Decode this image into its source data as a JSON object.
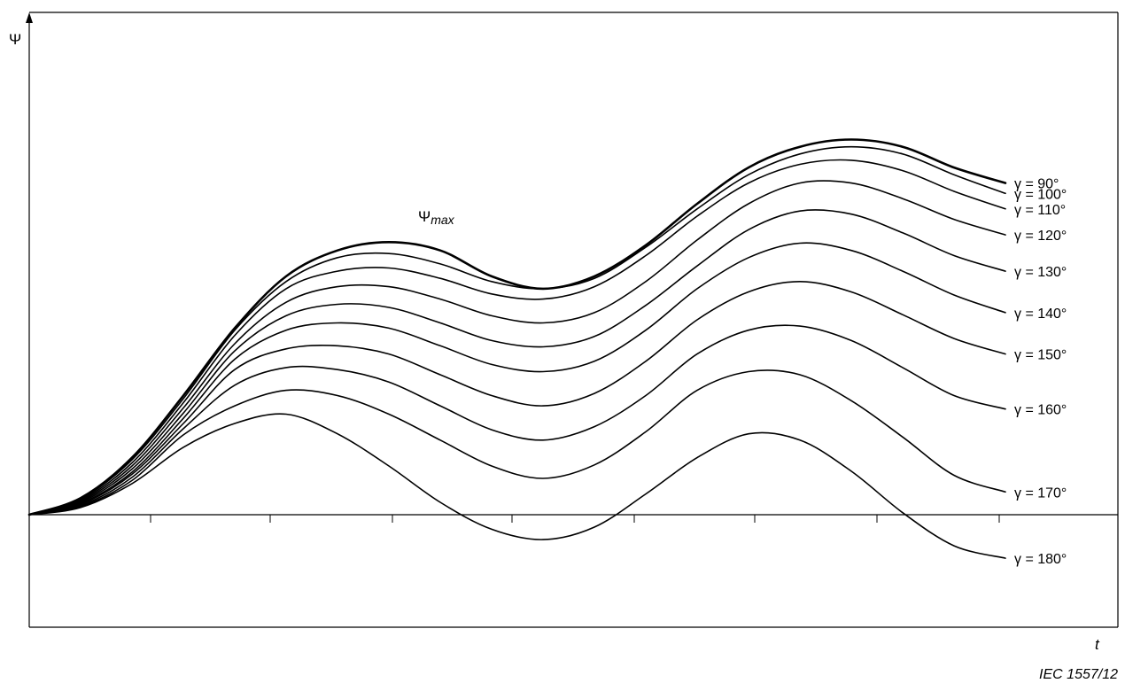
{
  "chart_data": {
    "type": "line",
    "title": "",
    "xlabel": "t",
    "ylabel": "Ψ",
    "xlim": [
      0,
      1
    ],
    "ylim": [
      -1,
      4.4
    ],
    "grid": false,
    "annotation": {
      "base": "Ψ",
      "subscript": "max"
    },
    "source": "IEC 1557/12",
    "series": [
      {
        "name": "γ = 90°",
        "values": [
          [
            0,
            0
          ],
          [
            0.05,
            0.16
          ],
          [
            0.1,
            0.55
          ],
          [
            0.15,
            1.15
          ],
          [
            0.2,
            1.8
          ],
          [
            0.25,
            2.3
          ],
          [
            0.3,
            2.55
          ],
          [
            0.35,
            2.63
          ],
          [
            0.4,
            2.55
          ],
          [
            0.45,
            2.3
          ],
          [
            0.5,
            2.18
          ],
          [
            0.55,
            2.3
          ],
          [
            0.6,
            2.6
          ],
          [
            0.65,
            3.0
          ],
          [
            0.7,
            3.35
          ],
          [
            0.75,
            3.55
          ],
          [
            0.8,
            3.62
          ],
          [
            0.85,
            3.55
          ],
          [
            0.9,
            3.35
          ],
          [
            0.95,
            3.2
          ]
        ]
      },
      {
        "name": "γ = 100°",
        "values": [
          [
            0,
            0
          ],
          [
            0.05,
            0.15
          ],
          [
            0.1,
            0.53
          ],
          [
            0.15,
            1.12
          ],
          [
            0.2,
            1.78
          ],
          [
            0.25,
            2.25
          ],
          [
            0.3,
            2.48
          ],
          [
            0.35,
            2.52
          ],
          [
            0.4,
            2.42
          ],
          [
            0.45,
            2.25
          ],
          [
            0.5,
            2.18
          ],
          [
            0.55,
            2.28
          ],
          [
            0.6,
            2.58
          ],
          [
            0.65,
            2.95
          ],
          [
            0.7,
            3.28
          ],
          [
            0.75,
            3.48
          ],
          [
            0.8,
            3.55
          ],
          [
            0.85,
            3.48
          ],
          [
            0.9,
            3.28
          ],
          [
            0.95,
            3.1
          ]
        ]
      },
      {
        "name": "γ = 110°",
        "values": [
          [
            0,
            0
          ],
          [
            0.05,
            0.14
          ],
          [
            0.1,
            0.5
          ],
          [
            0.15,
            1.08
          ],
          [
            0.2,
            1.73
          ],
          [
            0.25,
            2.18
          ],
          [
            0.3,
            2.35
          ],
          [
            0.35,
            2.38
          ],
          [
            0.4,
            2.28
          ],
          [
            0.45,
            2.13
          ],
          [
            0.5,
            2.08
          ],
          [
            0.55,
            2.2
          ],
          [
            0.6,
            2.5
          ],
          [
            0.65,
            2.88
          ],
          [
            0.7,
            3.2
          ],
          [
            0.75,
            3.38
          ],
          [
            0.8,
            3.42
          ],
          [
            0.85,
            3.32
          ],
          [
            0.9,
            3.12
          ],
          [
            0.95,
            2.95
          ]
        ]
      },
      {
        "name": "γ = 120°",
        "values": [
          [
            0,
            0
          ],
          [
            0.05,
            0.13
          ],
          [
            0.1,
            0.47
          ],
          [
            0.15,
            1.03
          ],
          [
            0.2,
            1.65
          ],
          [
            0.25,
            2.05
          ],
          [
            0.3,
            2.2
          ],
          [
            0.35,
            2.2
          ],
          [
            0.4,
            2.08
          ],
          [
            0.45,
            1.92
          ],
          [
            0.5,
            1.85
          ],
          [
            0.55,
            1.95
          ],
          [
            0.6,
            2.25
          ],
          [
            0.65,
            2.65
          ],
          [
            0.7,
            3.0
          ],
          [
            0.75,
            3.2
          ],
          [
            0.8,
            3.2
          ],
          [
            0.85,
            3.05
          ],
          [
            0.9,
            2.85
          ],
          [
            0.95,
            2.7
          ]
        ]
      },
      {
        "name": "γ = 130°",
        "values": [
          [
            0,
            0
          ],
          [
            0.05,
            0.12
          ],
          [
            0.1,
            0.44
          ],
          [
            0.15,
            0.98
          ],
          [
            0.2,
            1.58
          ],
          [
            0.25,
            1.92
          ],
          [
            0.3,
            2.03
          ],
          [
            0.35,
            2.0
          ],
          [
            0.4,
            1.85
          ],
          [
            0.45,
            1.68
          ],
          [
            0.5,
            1.62
          ],
          [
            0.55,
            1.72
          ],
          [
            0.6,
            2.02
          ],
          [
            0.65,
            2.4
          ],
          [
            0.7,
            2.75
          ],
          [
            0.75,
            2.93
          ],
          [
            0.8,
            2.9
          ],
          [
            0.85,
            2.72
          ],
          [
            0.9,
            2.5
          ],
          [
            0.95,
            2.35
          ]
        ]
      },
      {
        "name": "γ = 140°",
        "values": [
          [
            0,
            0
          ],
          [
            0.05,
            0.11
          ],
          [
            0.1,
            0.41
          ],
          [
            0.15,
            0.93
          ],
          [
            0.2,
            1.5
          ],
          [
            0.25,
            1.78
          ],
          [
            0.3,
            1.85
          ],
          [
            0.35,
            1.8
          ],
          [
            0.4,
            1.63
          ],
          [
            0.45,
            1.45
          ],
          [
            0.5,
            1.38
          ],
          [
            0.55,
            1.48
          ],
          [
            0.6,
            1.78
          ],
          [
            0.65,
            2.18
          ],
          [
            0.7,
            2.48
          ],
          [
            0.75,
            2.62
          ],
          [
            0.8,
            2.55
          ],
          [
            0.85,
            2.35
          ],
          [
            0.9,
            2.12
          ],
          [
            0.95,
            1.95
          ]
        ]
      },
      {
        "name": "γ = 150°",
        "values": [
          [
            0,
            0
          ],
          [
            0.05,
            0.1
          ],
          [
            0.1,
            0.39
          ],
          [
            0.15,
            0.88
          ],
          [
            0.2,
            1.4
          ],
          [
            0.25,
            1.6
          ],
          [
            0.3,
            1.63
          ],
          [
            0.35,
            1.55
          ],
          [
            0.4,
            1.35
          ],
          [
            0.45,
            1.15
          ],
          [
            0.5,
            1.05
          ],
          [
            0.55,
            1.17
          ],
          [
            0.6,
            1.48
          ],
          [
            0.65,
            1.88
          ],
          [
            0.7,
            2.15
          ],
          [
            0.75,
            2.25
          ],
          [
            0.8,
            2.15
          ],
          [
            0.85,
            1.93
          ],
          [
            0.9,
            1.7
          ],
          [
            0.95,
            1.55
          ]
        ]
      },
      {
        "name": "γ = 160°",
        "values": [
          [
            0,
            0
          ],
          [
            0.05,
            0.09
          ],
          [
            0.1,
            0.36
          ],
          [
            0.15,
            0.83
          ],
          [
            0.2,
            1.25
          ],
          [
            0.25,
            1.42
          ],
          [
            0.3,
            1.4
          ],
          [
            0.35,
            1.28
          ],
          [
            0.4,
            1.05
          ],
          [
            0.45,
            0.82
          ],
          [
            0.5,
            0.72
          ],
          [
            0.55,
            0.85
          ],
          [
            0.6,
            1.15
          ],
          [
            0.65,
            1.55
          ],
          [
            0.7,
            1.78
          ],
          [
            0.75,
            1.82
          ],
          [
            0.8,
            1.68
          ],
          [
            0.85,
            1.42
          ],
          [
            0.9,
            1.15
          ],
          [
            0.95,
            1.02
          ]
        ]
      },
      {
        "name": "γ = 170°",
        "values": [
          [
            0,
            0
          ],
          [
            0.05,
            0.08
          ],
          [
            0.1,
            0.33
          ],
          [
            0.15,
            0.77
          ],
          [
            0.2,
            1.05
          ],
          [
            0.25,
            1.2
          ],
          [
            0.3,
            1.15
          ],
          [
            0.35,
            0.97
          ],
          [
            0.4,
            0.72
          ],
          [
            0.45,
            0.47
          ],
          [
            0.5,
            0.35
          ],
          [
            0.55,
            0.48
          ],
          [
            0.6,
            0.8
          ],
          [
            0.65,
            1.2
          ],
          [
            0.7,
            1.38
          ],
          [
            0.75,
            1.35
          ],
          [
            0.8,
            1.1
          ],
          [
            0.85,
            0.75
          ],
          [
            0.9,
            0.38
          ],
          [
            0.95,
            0.22
          ]
        ]
      },
      {
        "name": "γ = 180°",
        "values": [
          [
            0,
            0
          ],
          [
            0.05,
            0.07
          ],
          [
            0.1,
            0.3
          ],
          [
            0.15,
            0.65
          ],
          [
            0.2,
            0.88
          ],
          [
            0.25,
            0.97
          ],
          [
            0.3,
            0.78
          ],
          [
            0.35,
            0.47
          ],
          [
            0.4,
            0.12
          ],
          [
            0.45,
            -0.14
          ],
          [
            0.5,
            -0.24
          ],
          [
            0.55,
            -0.12
          ],
          [
            0.6,
            0.2
          ],
          [
            0.65,
            0.55
          ],
          [
            0.7,
            0.78
          ],
          [
            0.75,
            0.72
          ],
          [
            0.8,
            0.42
          ],
          [
            0.85,
            0.02
          ],
          [
            0.9,
            -0.3
          ],
          [
            0.95,
            -0.42
          ]
        ]
      }
    ]
  }
}
